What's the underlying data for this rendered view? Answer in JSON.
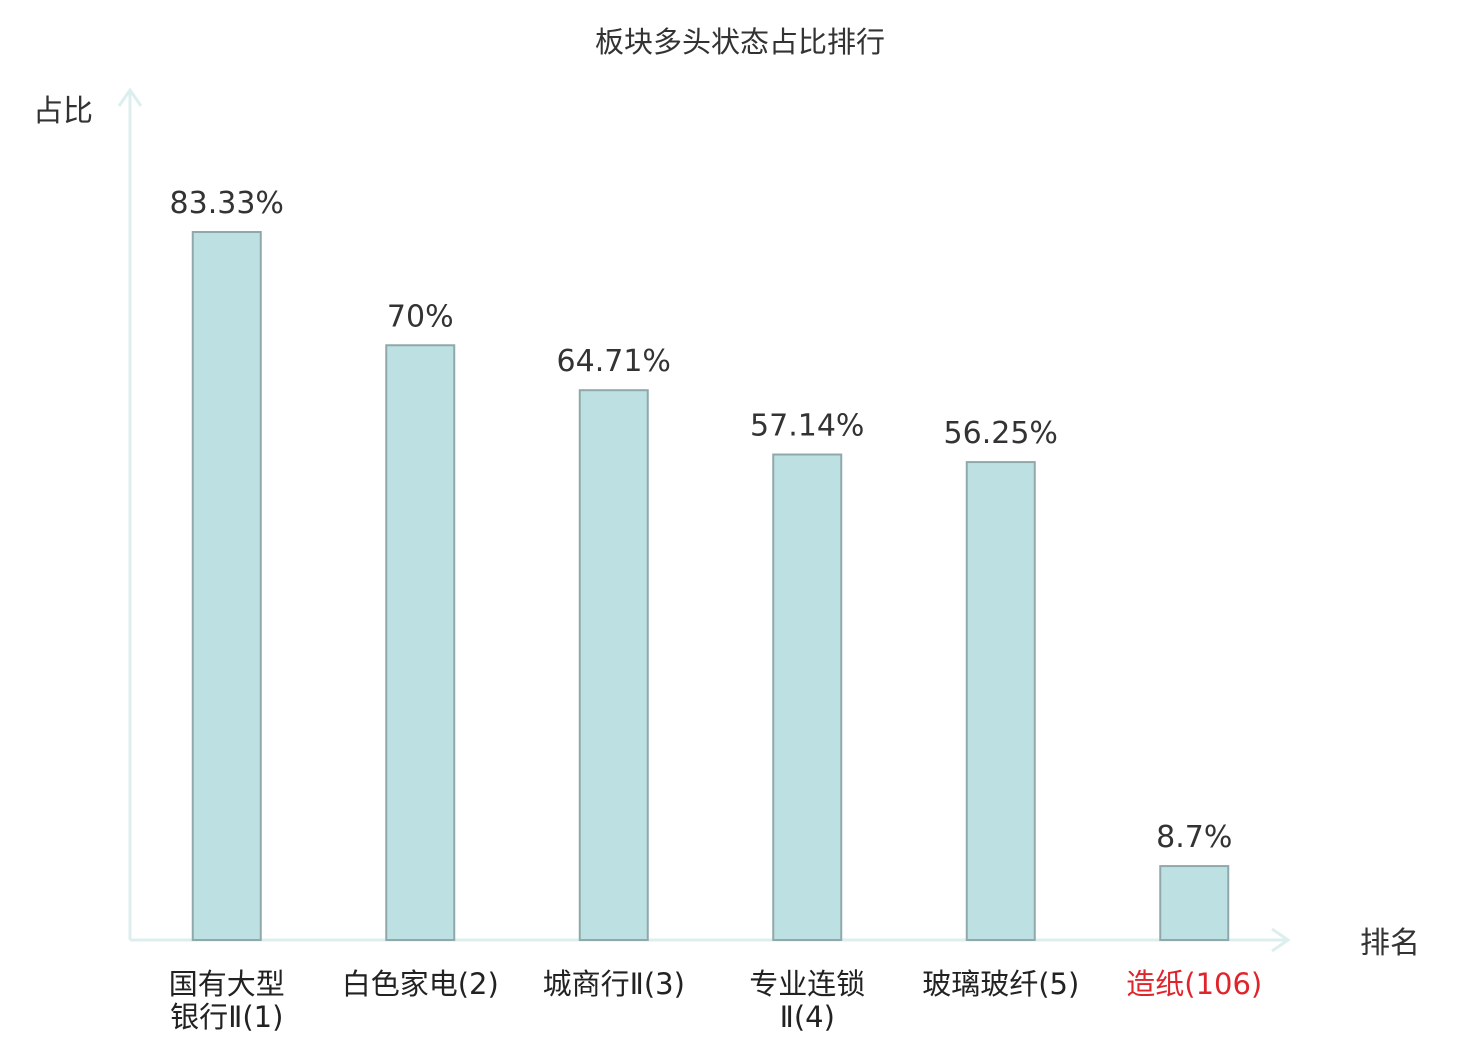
{
  "chart_data": {
    "type": "bar",
    "title": "板块多头状态占比排行",
    "ylabel": "占比",
    "xlabel": "排名",
    "ylim": [
      0,
      100
    ],
    "grid": false,
    "categories": [
      [
        "国有大型",
        "银行Ⅱ(1)"
      ],
      [
        "白色家电(2)"
      ],
      [
        "城商行Ⅱ(3)"
      ],
      [
        "专业连锁",
        "Ⅱ(4)"
      ],
      [
        "玻璃玻纤(5)"
      ],
      [
        "造纸(106)"
      ]
    ],
    "values": [
      83.33,
      70,
      64.71,
      57.14,
      56.25,
      8.7
    ],
    "value_labels": [
      "83.33%",
      "70%",
      "64.71%",
      "57.14%",
      "56.25%",
      "8.7%"
    ],
    "highlight_index": 5,
    "colors": {
      "bar_fill": "#bde0e2",
      "bar_stroke": "#8fa9aa",
      "axis": "#dcefee",
      "text": "#333333",
      "highlight_text": "#e0242b"
    }
  }
}
